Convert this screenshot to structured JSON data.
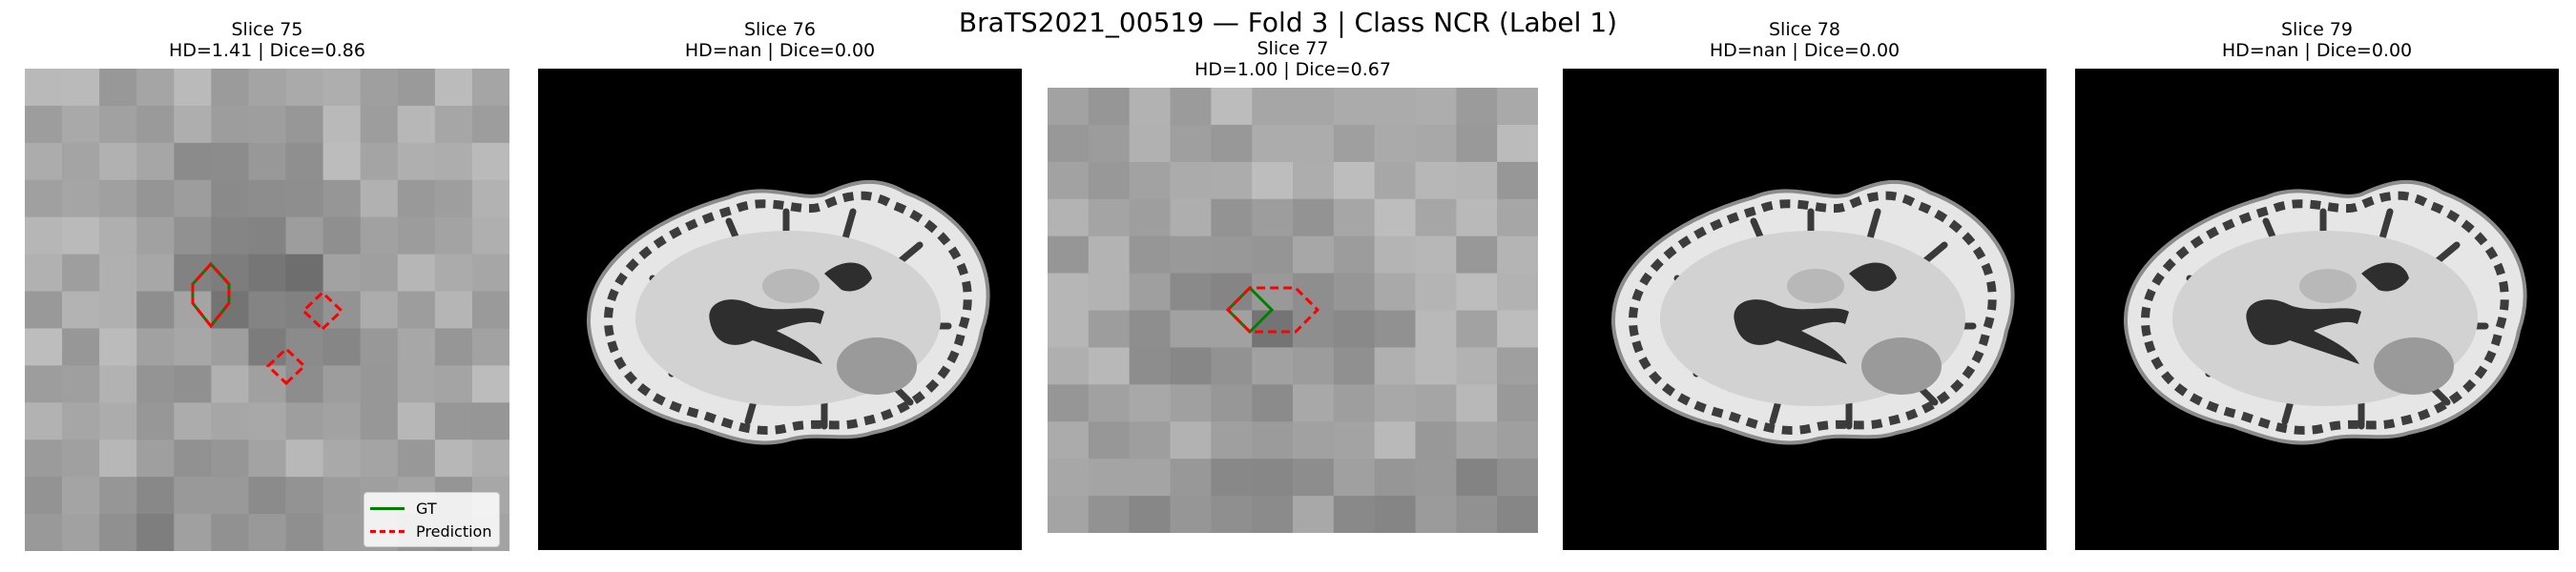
{
  "figure": {
    "title": "BraTS2021_00519 — Fold 3 | Class NCR (Label 1)"
  },
  "panels": [
    {
      "slice": "Slice 75",
      "metrics": "HD=1.41 | Dice=0.86",
      "view": "zoomed-patch"
    },
    {
      "slice": "Slice 76",
      "metrics": "HD=nan | Dice=0.00",
      "view": "axial-brain"
    },
    {
      "slice": "Slice 77",
      "metrics": "HD=1.00 | Dice=0.67",
      "view": "zoomed-patch"
    },
    {
      "slice": "Slice 78",
      "metrics": "HD=nan | Dice=0.00",
      "view": "axial-brain"
    },
    {
      "slice": "Slice 79",
      "metrics": "HD=nan | Dice=0.00",
      "view": "axial-brain"
    }
  ],
  "legend": {
    "items": [
      {
        "label": "GT",
        "color": "#008000",
        "style": "solid"
      },
      {
        "label": "Prediction",
        "color": "#ff0000",
        "style": "dashed"
      }
    ]
  },
  "colors": {
    "gt": "#008000",
    "prediction": "#ff0000",
    "background": "#000000"
  }
}
